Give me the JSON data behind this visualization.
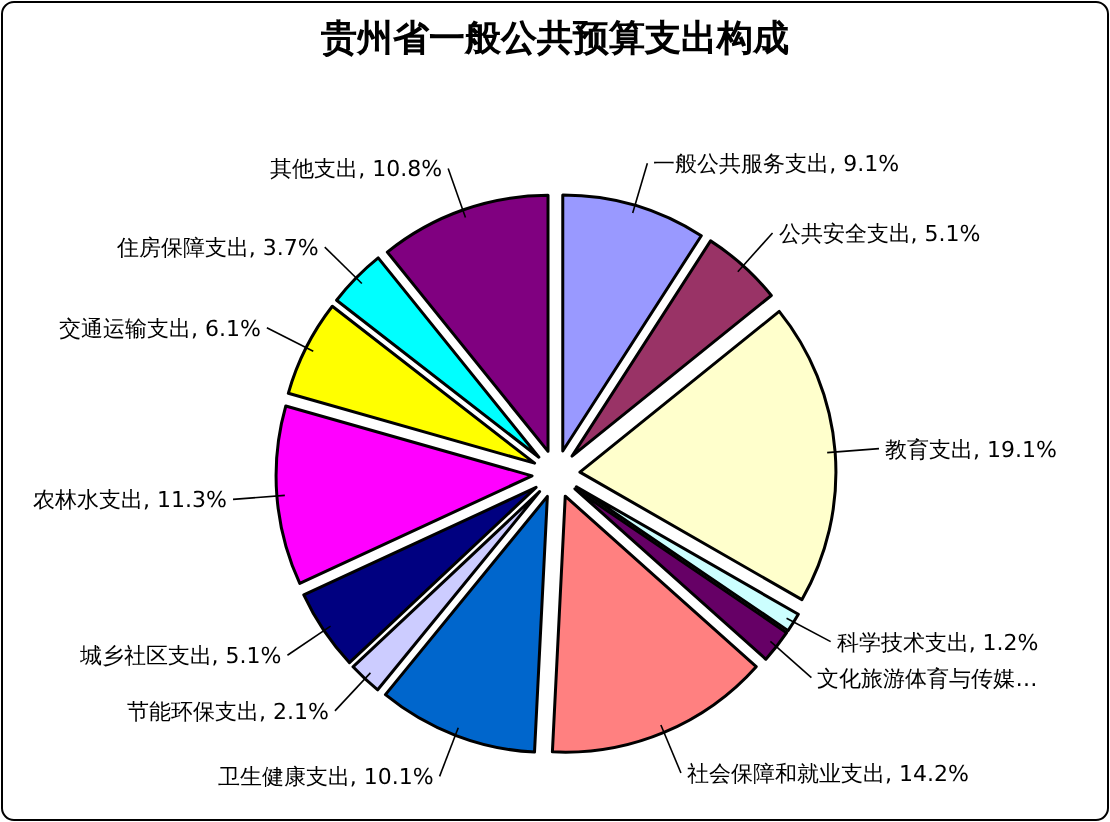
{
  "chart_data": {
    "type": "pie",
    "title": "贵州省一般公共预算支出构成",
    "categories": [
      "一般公共服务支出",
      "公共安全支出",
      "教育支出",
      "科学技术支出",
      "文化旅游体育与传媒…",
      "社会保障和就业支出",
      "卫生健康支出",
      "节能环保支出",
      "城乡社区支出",
      "农林水支出",
      "交通运输支出",
      "住房保障支出",
      "其他支出"
    ],
    "values": [
      9.1,
      5.1,
      19.1,
      1.2,
      2.1,
      14.2,
      10.1,
      2.1,
      5.1,
      11.3,
      6.1,
      3.7,
      10.8
    ],
    "value_labels": [
      "9.1%",
      "5.1%",
      "19.1%",
      "1.2%",
      null,
      "14.2%",
      "10.1%",
      "2.1%",
      "5.1%",
      "11.3%",
      "6.1%",
      "3.7%",
      "10.8%"
    ],
    "colors": [
      "#9999ff",
      "#993366",
      "#ffffcc",
      "#ccffff",
      "#660066",
      "#ff8080",
      "#0066cc",
      "#ccccff",
      "#000080",
      "#ff00ff",
      "#ffff00",
      "#00ffff",
      "#800080"
    ]
  }
}
